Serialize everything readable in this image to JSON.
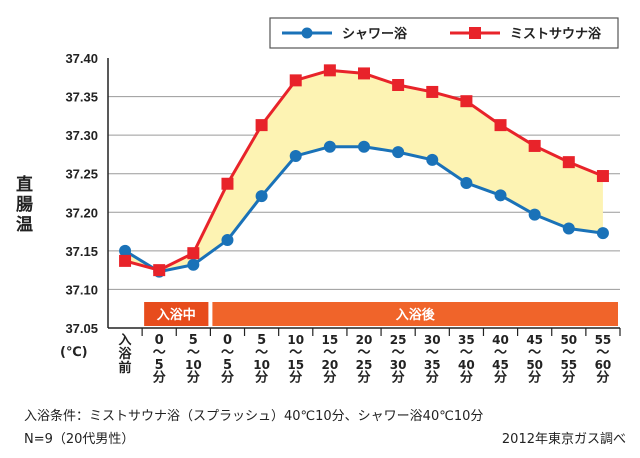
{
  "chart_data": {
    "type": "line",
    "ylabel": "直腸温",
    "yunit": "(℃)",
    "ylim": [
      37.05,
      37.4
    ],
    "yticks": [
      "37.40",
      "37.35",
      "37.30",
      "37.25",
      "37.20",
      "37.15",
      "37.10",
      "37.05"
    ],
    "categories": [
      [
        "入",
        "浴",
        "前"
      ],
      [
        "0",
        "〜",
        "5",
        "分"
      ],
      [
        "5",
        "〜",
        "10",
        "分"
      ],
      [
        "0",
        "〜",
        "5",
        "分"
      ],
      [
        "5",
        "〜",
        "10",
        "分"
      ],
      [
        "10",
        "〜",
        "15",
        "分"
      ],
      [
        "15",
        "〜",
        "20",
        "分"
      ],
      [
        "20",
        "〜",
        "25",
        "分"
      ],
      [
        "25",
        "〜",
        "30",
        "分"
      ],
      [
        "30",
        "〜",
        "35",
        "分"
      ],
      [
        "35",
        "〜",
        "40",
        "分"
      ],
      [
        "40",
        "〜",
        "45",
        "分"
      ],
      [
        "45",
        "〜",
        "50",
        "分"
      ],
      [
        "50",
        "〜",
        "55",
        "分"
      ],
      [
        "55",
        "〜",
        "60",
        "分"
      ]
    ],
    "series": [
      {
        "name": "シャワー浴",
        "color": "#1a72b8",
        "marker": "circle",
        "values": [
          37.15,
          37.123,
          37.132,
          37.164,
          37.221,
          37.273,
          37.285,
          37.285,
          37.278,
          37.268,
          37.238,
          37.222,
          37.197,
          37.179,
          37.173
        ]
      },
      {
        "name": "ミストサウナ浴",
        "color": "#e8232a",
        "marker": "square",
        "values": [
          37.137,
          37.125,
          37.147,
          37.237,
          37.313,
          37.371,
          37.384,
          37.38,
          37.365,
          37.356,
          37.344,
          37.313,
          37.286,
          37.265,
          37.247
        ]
      }
    ],
    "fill_between_color": "#fdf3b3",
    "phases": [
      {
        "label": "入浴中",
        "from_index": 1,
        "to_index": 2,
        "color": "#e74c1c"
      },
      {
        "label": "入浴後",
        "from_index": 3,
        "to_index": 14,
        "color": "#f0642a"
      }
    ],
    "grid": true,
    "legend_position": "top-right"
  },
  "footer": {
    "conditions": "入浴条件：ミストサウナ浴（スプラッシュ）40℃10分、シャワー浴40℃10分",
    "sample": "N=9（20代男性）",
    "source": "2012年東京ガス調べ"
  }
}
